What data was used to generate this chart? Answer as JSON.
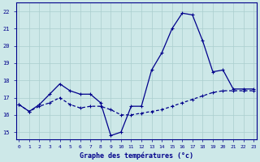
{
  "title": "Graphe des températures (°c)",
  "background_color": "#cde8e8",
  "grid_color": "#aacece",
  "line_color": "#00008b",
  "x_ticks": [
    0,
    1,
    2,
    3,
    4,
    5,
    6,
    7,
    8,
    9,
    10,
    11,
    12,
    13,
    14,
    15,
    16,
    17,
    18,
    19,
    20,
    21,
    22,
    23
  ],
  "y_ticks": [
    15,
    16,
    17,
    18,
    19,
    20,
    21,
    22
  ],
  "ylim": [
    14.6,
    22.5
  ],
  "xlim": [
    -0.3,
    23.3
  ],
  "line1_y": [
    16.6,
    16.2,
    16.6,
    17.2,
    17.8,
    17.4,
    17.2,
    17.2,
    16.7,
    14.8,
    15.0,
    16.5,
    16.5,
    18.6,
    19.6,
    21.0,
    21.9,
    21.8,
    20.3,
    18.5,
    18.6,
    17.5,
    17.5,
    17.5
  ],
  "line2_y": [
    16.6,
    16.2,
    16.5,
    16.7,
    17.0,
    16.6,
    16.4,
    16.5,
    16.5,
    16.3,
    16.0,
    16.0,
    16.1,
    16.2,
    16.3,
    16.5,
    16.7,
    16.9,
    17.1,
    17.3,
    17.4,
    17.4,
    17.4,
    17.4
  ]
}
